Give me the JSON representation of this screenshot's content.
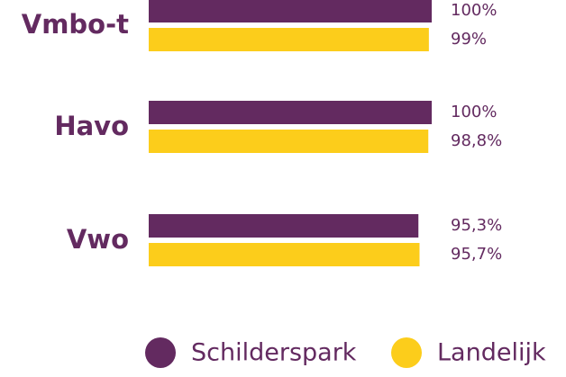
{
  "chart_data": {
    "type": "bar",
    "categories": [
      "Vmbo-t",
      "Havo",
      "Vwo"
    ],
    "series": [
      {
        "name": "Schilderspark",
        "color": "#632a60",
        "values": [
          100,
          100,
          95.3
        ],
        "value_labels": [
          "100%",
          "100%",
          "95,3%"
        ]
      },
      {
        "name": "Landelijk",
        "color": "#fccd1b",
        "values": [
          99,
          98.8,
          95.7
        ],
        "value_labels": [
          "99%",
          "98,8%",
          "95,7%"
        ]
      }
    ]
  }
}
